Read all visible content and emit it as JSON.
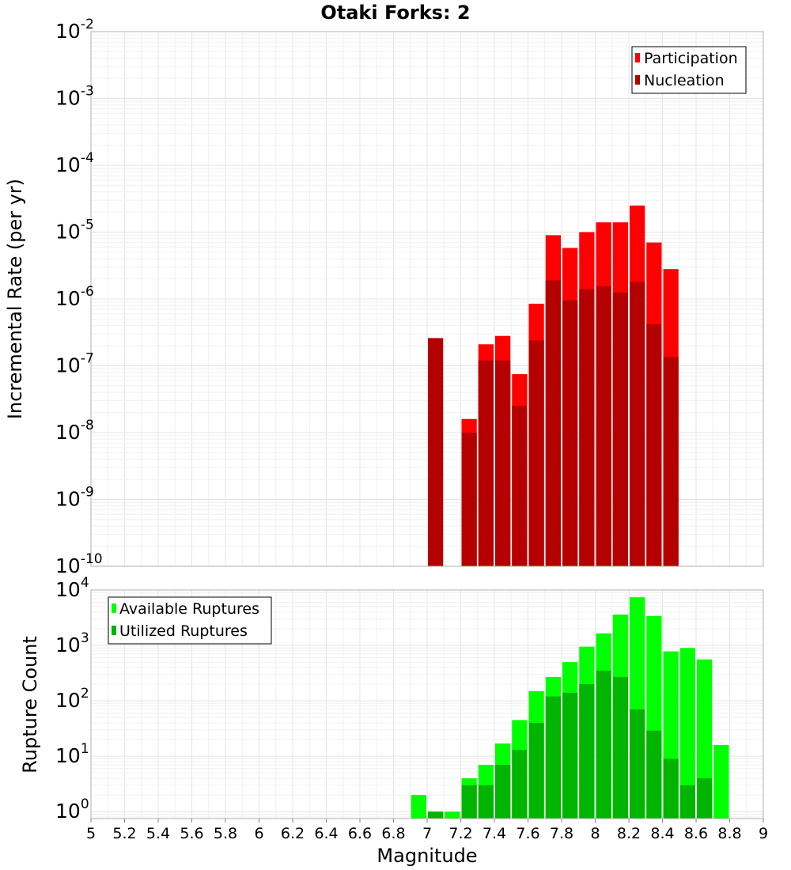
{
  "chart_data": [
    {
      "type": "bar",
      "title": "Otaki Forks: 2",
      "xlabel": "",
      "ylabel": "Incremental Rate (per yr)",
      "yscale": "log",
      "ylim": [
        1e-10,
        0.01
      ],
      "xlim": [
        5,
        9
      ],
      "bin_width": 0.1,
      "grid": true,
      "legend_position": "top-right",
      "series": [
        {
          "name": "Participation",
          "color": "#ff0000",
          "x": [
            7.25,
            7.35,
            7.45,
            7.55,
            7.65,
            7.75,
            7.85,
            7.95,
            8.05,
            8.15,
            8.25,
            8.35,
            8.45
          ],
          "values": [
            1.6e-08,
            2.1e-07,
            2.8e-07,
            7.5e-08,
            8.5e-07,
            9e-06,
            5.8e-06,
            1e-05,
            1.4e-05,
            1.4e-05,
            2.5e-05,
            7e-06,
            2.8e-06
          ]
        },
        {
          "name": "Nucleation",
          "color": "#b40000",
          "x": [
            7.05,
            7.25,
            7.35,
            7.45,
            7.55,
            7.65,
            7.75,
            7.85,
            7.95,
            8.05,
            8.15,
            8.25,
            8.35,
            8.45
          ],
          "values": [
            2.6e-07,
            1e-08,
            1.2e-07,
            1.2e-07,
            2.5e-08,
            2.4e-07,
            1.9e-06,
            9.5e-07,
            1.4e-06,
            1.55e-06,
            1.25e-06,
            1.8e-06,
            4.2e-07,
            1.35e-07
          ]
        }
      ]
    },
    {
      "type": "bar",
      "title": "",
      "xlabel": "Magnitude",
      "ylabel": "Rupture Count",
      "yscale": "log",
      "ylim": [
        0.75,
        10000
      ],
      "xlim": [
        5,
        9
      ],
      "bin_width": 0.1,
      "grid": true,
      "legend_position": "top-left",
      "x_ticks": [
        "5",
        "5.2",
        "5.4",
        "5.6",
        "5.8",
        "6",
        "6.2",
        "6.4",
        "6.6",
        "6.8",
        "7",
        "7.2",
        "7.4",
        "7.6",
        "7.8",
        "8",
        "8.2",
        "8.4",
        "8.6",
        "8.8",
        "9"
      ],
      "series": [
        {
          "name": "Available Ruptures",
          "color": "#00ff00",
          "x": [
            6.95,
            7.05,
            7.15,
            7.25,
            7.35,
            7.45,
            7.55,
            7.65,
            7.75,
            7.85,
            7.95,
            8.05,
            8.15,
            8.25,
            8.35,
            8.45,
            8.55,
            8.65,
            8.75
          ],
          "values": [
            2,
            1,
            1,
            4,
            7,
            17,
            45,
            150,
            270,
            500,
            950,
            1650,
            3600,
            7400,
            3400,
            780,
            900,
            560,
            16
          ]
        },
        {
          "name": "Utilized Ruptures",
          "color": "#00b400",
          "x": [
            7.05,
            7.25,
            7.35,
            7.45,
            7.55,
            7.65,
            7.75,
            7.85,
            7.95,
            8.05,
            8.15,
            8.25,
            8.35,
            8.45,
            8.55,
            8.65
          ],
          "values": [
            1,
            3,
            3,
            7,
            13,
            40,
            120,
            140,
            200,
            350,
            270,
            70,
            29,
            9,
            3,
            4
          ]
        }
      ]
    }
  ]
}
